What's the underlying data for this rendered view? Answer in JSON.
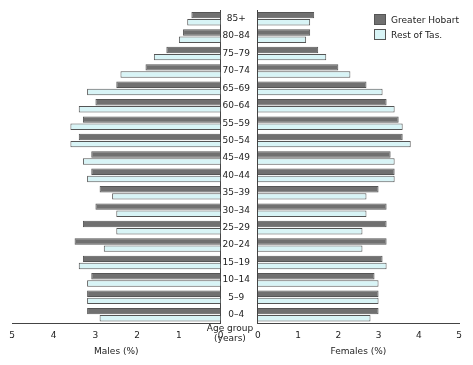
{
  "chart_data": [
    {
      "type": "bar",
      "orientation": "horizontal",
      "x_label": "Males (%)",
      "y_label": "Age group (years)",
      "categories": [
        "0–4",
        "5–9",
        "10–14",
        "15–19",
        "20–24",
        "25–29",
        "30–34",
        "35–39",
        "40–44",
        "45–49",
        "50–54",
        "55–59",
        "60–64",
        "65–69",
        "70–74",
        "75–79",
        "80–84",
        "85+"
      ],
      "series": [
        {
          "name": "Greater Hobart",
          "color": "#707070",
          "values": [
            3.2,
            3.2,
            3.1,
            3.3,
            3.5,
            3.3,
            3.0,
            2.9,
            3.1,
            3.1,
            3.4,
            3.3,
            3.0,
            2.5,
            1.8,
            1.3,
            0.9,
            0.7
          ]
        },
        {
          "name": "Rest of Tas.",
          "color": "#d8f4f6",
          "values": [
            2.9,
            3.2,
            3.2,
            3.4,
            2.8,
            2.5,
            2.5,
            2.6,
            3.2,
            3.3,
            3.6,
            3.6,
            3.4,
            3.2,
            2.4,
            1.6,
            1.0,
            0.8
          ]
        }
      ],
      "xlim": [
        0,
        5
      ],
      "xticks": [
        0,
        1,
        2,
        3,
        4,
        5
      ],
      "grid": false
    },
    {
      "type": "bar",
      "orientation": "horizontal",
      "x_label": "Females (%)",
      "categories": [
        "0–4",
        "5–9",
        "10–14",
        "15–19",
        "20–24",
        "25–29",
        "30–34",
        "35–39",
        "40–44",
        "45–49",
        "50–54",
        "55–59",
        "60–64",
        "65–69",
        "70–74",
        "75–79",
        "80–84",
        "85+"
      ],
      "series": [
        {
          "name": "Greater Hobart",
          "color": "#707070",
          "values": [
            3.0,
            3.0,
            2.9,
            3.1,
            3.2,
            3.2,
            3.2,
            3.0,
            3.4,
            3.3,
            3.6,
            3.5,
            3.2,
            2.7,
            2.0,
            1.5,
            1.3,
            1.4
          ]
        },
        {
          "name": "Rest of Tas.",
          "color": "#d8f4f6",
          "values": [
            2.8,
            3.0,
            3.0,
            3.2,
            2.6,
            2.6,
            2.7,
            2.7,
            3.4,
            3.4,
            3.8,
            3.6,
            3.4,
            3.1,
            2.3,
            1.7,
            1.2,
            1.3
          ]
        }
      ],
      "xlim": [
        0,
        5
      ],
      "xticks": [
        0,
        1,
        2,
        3,
        4,
        5
      ],
      "grid": false,
      "legend": "upper right",
      "tick_labels": "x"
    }
  ]
}
